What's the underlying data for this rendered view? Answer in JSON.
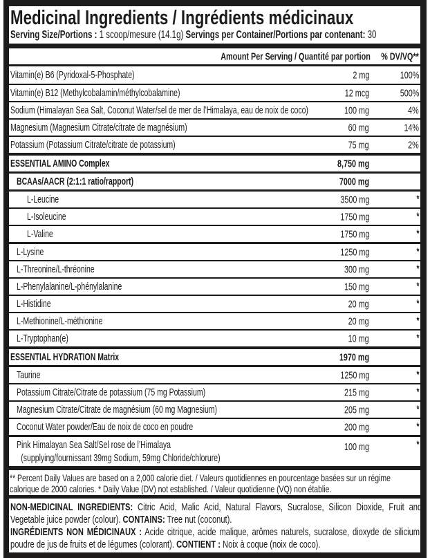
{
  "colors": {
    "ink": "#1c1b1a",
    "paper": "#ffffff"
  },
  "title": "Medicinal Ingredients / Ingrédients médicinaux",
  "serving": {
    "size_label": "Serving Size/Portions :",
    "size_value": " 1 scoop/mesure (14.1g) ",
    "per_container_label": "Servings per Container/Portions par contenant:",
    "per_container_value": " 30"
  },
  "columns": {
    "amount": "Amount Per Serving / Quantité par portion",
    "dv": "% DV/VQ**"
  },
  "rows": [
    {
      "name": "Vitamin(e) B6 (Pyridoxal-5-Phosphate)",
      "amount": "2 mg",
      "dv": "100%",
      "indent": 0,
      "bold": false,
      "sep": "none"
    },
    {
      "name": "Vitamin(e) B12 (Methylcobalamin/méthylcobalamine)",
      "amount": "12 mcg",
      "dv": "500%",
      "indent": 0,
      "bold": false,
      "sep": "thin"
    },
    {
      "name": "Sodium (Himalayan Sea Salt, Coconut Water/sel de mer de l’Himalaya, eau de noix de coco)",
      "amount": "100 mg",
      "dv": "4%",
      "indent": 0,
      "bold": false,
      "sep": "thin"
    },
    {
      "name": "Magnesium (Magnesium Citrate/citrate de magnésium)",
      "amount": "60 mg",
      "dv": "14%",
      "indent": 0,
      "bold": false,
      "sep": "thin"
    },
    {
      "name": "Potassium (Potassium Citrate/citrate de potassium)",
      "amount": "75 mg",
      "dv": "2%",
      "indent": 0,
      "bold": false,
      "sep": "thin"
    },
    {
      "name": "ESSENTIAL AMINO Complex",
      "amount": "8,750 mg",
      "dv": "",
      "indent": 0,
      "bold": true,
      "sep": "thick"
    },
    {
      "name": "BCAAs/AACR (2:1:1 ratio/rapport)",
      "amount": "7000 mg",
      "dv": "",
      "indent": 1,
      "bold": true,
      "sep": "med"
    },
    {
      "name": "L-Leucine",
      "amount": "3500 mg",
      "dv": "*",
      "indent": 2,
      "bold": false,
      "sep": "med"
    },
    {
      "name": "L-Isoleucine",
      "amount": "1750 mg",
      "dv": "*",
      "indent": 2,
      "bold": false,
      "sep": "thin"
    },
    {
      "name": "L-Valine",
      "amount": "1750 mg",
      "dv": "*",
      "indent": 2,
      "bold": false,
      "sep": "thin"
    },
    {
      "name": "L-Lysine",
      "amount": "1250 mg",
      "dv": "*",
      "indent": 1,
      "bold": false,
      "sep": "med"
    },
    {
      "name": "L-Threonine/L-thréonine",
      "amount": "300 mg",
      "dv": "*",
      "indent": 1,
      "bold": false,
      "sep": "thin"
    },
    {
      "name": "L-Phenylalanine/L-phénylalanine",
      "amount": "150 mg",
      "dv": "*",
      "indent": 1,
      "bold": false,
      "sep": "thin"
    },
    {
      "name": "L-Histidine",
      "amount": "20 mg",
      "dv": "*",
      "indent": 1,
      "bold": false,
      "sep": "thin"
    },
    {
      "name": "L-Methionine/L-méthionine",
      "amount": "20 mg",
      "dv": "*",
      "indent": 1,
      "bold": false,
      "sep": "thin"
    },
    {
      "name": "L-Tryptophan(e)",
      "amount": "10 mg",
      "dv": "*",
      "indent": 1,
      "bold": false,
      "sep": "thin"
    },
    {
      "name": "ESSENTIAL HYDRATION Matrix",
      "amount": "1970 mg",
      "dv": "",
      "indent": 0,
      "bold": true,
      "sep": "thick"
    },
    {
      "name": "Taurine",
      "amount": "1250 mg",
      "dv": "*",
      "indent": 1,
      "bold": false,
      "sep": "med"
    },
    {
      "name": "Potassium Citrate/Citrate de potassium (75 mg Potassium)",
      "amount": "215 mg",
      "dv": "*",
      "indent": 1,
      "bold": false,
      "sep": "thin"
    },
    {
      "name": "Magnesium Citrate/Citrate de magnésium (60 mg Magnesium)",
      "amount": "205 mg",
      "dv": "*",
      "indent": 1,
      "bold": false,
      "sep": "thin"
    },
    {
      "name": "Coconut Water powder/Eau de noix de coco en poudre",
      "amount": "200 mg",
      "dv": "*",
      "indent": 1,
      "bold": false,
      "sep": "thin"
    },
    {
      "name": "Pink Himalayan Sea Salt/Sel rose de l’Himalaya",
      "name2": "(supplying/fournissant 39mg Sodium, 59mg Chloride/chlorure)",
      "amount": "100 mg",
      "dv": "*",
      "indent": 1,
      "bold": false,
      "sep": "med"
    }
  ],
  "footnote": "** Percent Daily Values are based on a 2,000 calorie diet. / Valeurs quotidiennes en pourcentage basées sur un régime calorique de 2000 calories.  * Daily Value (DV) not established. / Valeur quotidienne (VQ) non établie.",
  "non_medicinal": {
    "en_label": "NON-MEDICINAL INGREDIENTS:",
    "en_text": " Citric Acid, Malic Acid, Natural Flavors, Sucralose, Silicon Dioxide, Fruit and Vegetable juice powder (colour). ",
    "contains_label": "CONTAINS:",
    "contains_text": " Tree nut (coconut).",
    "fr_label": "INGRÉDIENTS NON MÉDICINAUX :",
    "fr_text": " Acide citrique, acide malique, arômes naturels, sucralose, dioxyde de silicium, poudre de jus de fruits et de légumes (colorant). ",
    "contient_label": "CONTIENT :",
    "contient_text": " Noix à coque (noix de coco)."
  }
}
